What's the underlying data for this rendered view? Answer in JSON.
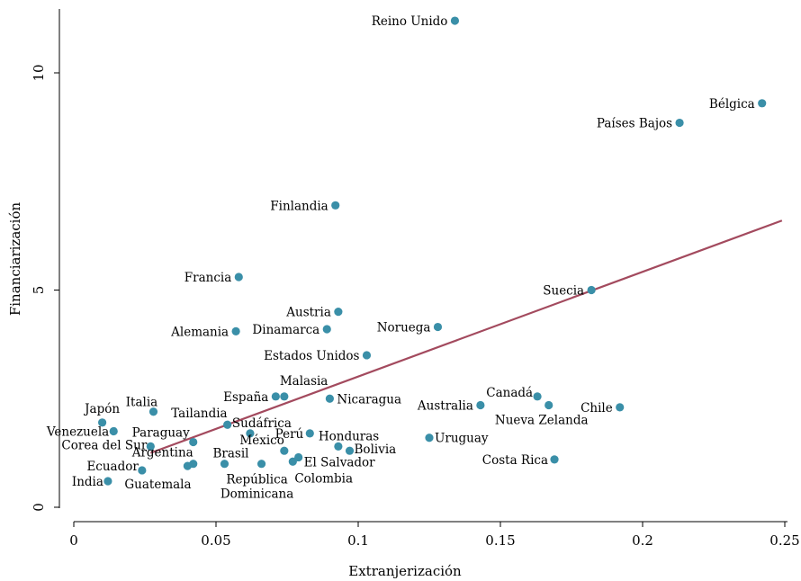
{
  "chart_data": {
    "type": "scatter",
    "xlabel": "Extranjerización",
    "ylabel": "Financiarización",
    "xlim": [
      0,
      0.25
    ],
    "ylim": [
      0,
      11.2
    ],
    "xticks": [
      0,
      0.05,
      0.1,
      0.15,
      0.2,
      0.25
    ],
    "xtick_labels": [
      "0",
      "0.05",
      "0.1",
      "0.15",
      "0.2",
      "0.25"
    ],
    "yticks": [
      0,
      5,
      10
    ],
    "ytick_labels": [
      "0",
      "5",
      "10"
    ],
    "grid": false,
    "point_color": "#3a8fa8",
    "line_color": "#a34a5e",
    "fit_line": [
      [
        0.027,
        1.25
      ],
      [
        0.249,
        6.6
      ]
    ],
    "points": [
      {
        "label": "Reino Unido",
        "x": 0.134,
        "y": 11.2,
        "anchor": "end",
        "dx": -8,
        "dy": 5
      },
      {
        "label": "Bélgica",
        "x": 0.242,
        "y": 9.3,
        "anchor": "end",
        "dx": -8,
        "dy": 5
      },
      {
        "label": "Países Bajos",
        "x": 0.213,
        "y": 8.85,
        "anchor": "end",
        "dx": -8,
        "dy": 5
      },
      {
        "label": "Finlandia",
        "x": 0.092,
        "y": 6.95,
        "anchor": "end",
        "dx": -8,
        "dy": 5
      },
      {
        "label": "Francia",
        "x": 0.058,
        "y": 5.3,
        "anchor": "end",
        "dx": -8,
        "dy": 5
      },
      {
        "label": "Suecia",
        "x": 0.182,
        "y": 5.0,
        "anchor": "end",
        "dx": -8,
        "dy": 5
      },
      {
        "label": "Austria",
        "x": 0.093,
        "y": 4.5,
        "anchor": "end",
        "dx": -8,
        "dy": 5
      },
      {
        "label": "Noruega",
        "x": 0.128,
        "y": 4.15,
        "anchor": "end",
        "dx": -8,
        "dy": 5
      },
      {
        "label": "Dinamarca",
        "x": 0.089,
        "y": 4.1,
        "anchor": "end",
        "dx": -8,
        "dy": 5
      },
      {
        "label": "Alemania",
        "x": 0.057,
        "y": 4.05,
        "anchor": "end",
        "dx": -8,
        "dy": 5
      },
      {
        "label": "Estados Unidos",
        "x": 0.103,
        "y": 3.5,
        "anchor": "end",
        "dx": -8,
        "dy": 5
      },
      {
        "label": "Malasia",
        "x": 0.074,
        "y": 2.55,
        "anchor": "start",
        "dx": -5,
        "dy": -13
      },
      {
        "label": "España",
        "x": 0.071,
        "y": 2.55,
        "anchor": "end",
        "dx": -8,
        "dy": 5
      },
      {
        "label": "Nicaragua",
        "x": 0.09,
        "y": 2.5,
        "anchor": "start",
        "dx": 8,
        "dy": 5
      },
      {
        "label": "Canadá",
        "x": 0.163,
        "y": 2.55,
        "anchor": "end",
        "dx": -5,
        "dy": 0
      },
      {
        "label": "Australia",
        "x": 0.143,
        "y": 2.35,
        "anchor": "end",
        "dx": -8,
        "dy": 5
      },
      {
        "label": "Nueva Zelanda",
        "x": 0.167,
        "y": 2.35,
        "anchor": "middle",
        "dx": -8,
        "dy": 21
      },
      {
        "label": "Chile",
        "x": 0.192,
        "y": 2.3,
        "anchor": "end",
        "dx": -8,
        "dy": 5
      },
      {
        "label": "Italia",
        "x": 0.028,
        "y": 2.2,
        "anchor": "middle",
        "dx": -13,
        "dy": -6
      },
      {
        "label": "Japón",
        "x": 0.01,
        "y": 1.95,
        "anchor": "middle",
        "dx": 0,
        "dy": -11
      },
      {
        "label": "Tailandia",
        "x": 0.054,
        "y": 1.9,
        "anchor": "end",
        "dx": 0,
        "dy": -8
      },
      {
        "label": "Sudáfrica",
        "x": 0.062,
        "y": 1.7,
        "anchor": "start",
        "dx": -20,
        "dy": -7
      },
      {
        "label": "Venezuela",
        "x": 0.014,
        "y": 1.75,
        "anchor": "end",
        "dx": -5,
        "dy": 5
      },
      {
        "label": "Perú",
        "x": 0.083,
        "y": 1.7,
        "anchor": "end",
        "dx": -7,
        "dy": 5
      },
      {
        "label": "Honduras",
        "x": 0.093,
        "y": 1.4,
        "anchor": "start",
        "dx": -22,
        "dy": -7
      },
      {
        "label": "Uruguay",
        "x": 0.125,
        "y": 1.6,
        "anchor": "start",
        "dx": 6,
        "dy": 5
      },
      {
        "label": "Paraguay",
        "x": 0.042,
        "y": 1.5,
        "anchor": "end",
        "dx": -4,
        "dy": -6
      },
      {
        "label": "Corea del Sur",
        "x": 0.027,
        "y": 1.4,
        "anchor": "end",
        "dx": -4,
        "dy": 3
      },
      {
        "label": "Bolivia",
        "x": 0.097,
        "y": 1.3,
        "anchor": "start",
        "dx": 5,
        "dy": 3
      },
      {
        "label": "México",
        "x": 0.074,
        "y": 1.3,
        "anchor": "end",
        "dx": 0,
        "dy": -7
      },
      {
        "label": "Brasil",
        "x": 0.053,
        "y": 1.0,
        "anchor": "start",
        "dx": -13,
        "dy": -7
      },
      {
        "label": "Argentina",
        "x": 0.042,
        "y": 1.0,
        "anchor": "end",
        "dx": 0,
        "dy": -8
      },
      {
        "label": "El Salvador",
        "x": 0.079,
        "y": 1.15,
        "anchor": "start",
        "dx": 6,
        "dy": 10
      },
      {
        "label": "Costa Rica",
        "x": 0.169,
        "y": 1.1,
        "anchor": "end",
        "dx": -7,
        "dy": 5
      },
      {
        "label": "Ecuador",
        "x": 0.024,
        "y": 0.85,
        "anchor": "end",
        "dx": -4,
        "dy": 0
      },
      {
        "label": "Guatemala",
        "x": 0.04,
        "y": 0.95,
        "anchor": "start",
        "dx": -70,
        "dy": 25
      },
      {
        "label": "República\nDominicana",
        "x": 0.066,
        "y": 1.0,
        "anchor": "middle",
        "dx": -5,
        "dy": 22
      },
      {
        "label": "Colombia",
        "x": 0.077,
        "y": 1.05,
        "anchor": "start",
        "dx": 2,
        "dy": 23
      },
      {
        "label": "India",
        "x": 0.012,
        "y": 0.6,
        "anchor": "end",
        "dx": -5,
        "dy": 5
      }
    ]
  }
}
